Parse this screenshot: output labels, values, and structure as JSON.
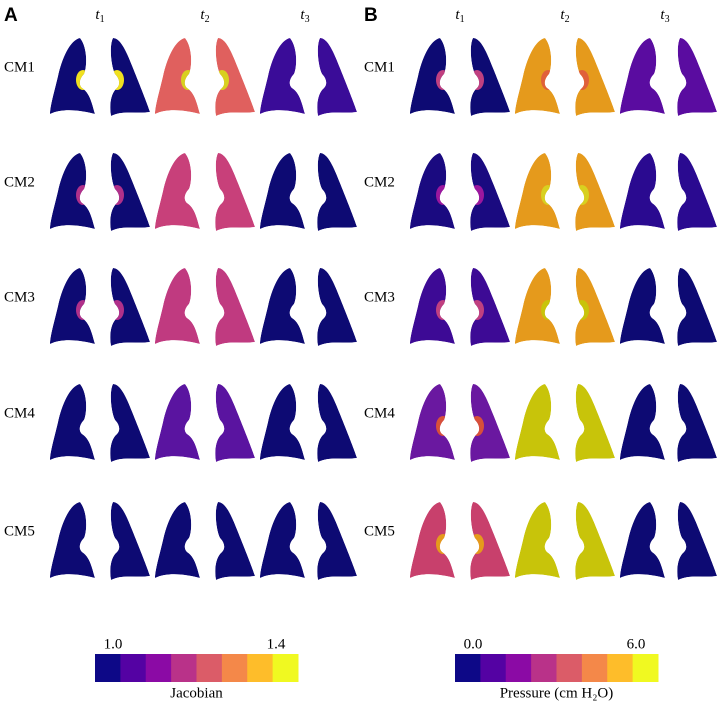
{
  "panels": [
    {
      "letter": "A",
      "columns": [
        {
          "base": "t",
          "sub": "1"
        },
        {
          "base": "t",
          "sub": "2"
        },
        {
          "base": "t",
          "sub": "3"
        }
      ],
      "rows": [
        {
          "label": "CM1",
          "cells": [
            {
              "fill": "#0d0a73",
              "spot": "#f0e020"
            },
            {
              "fill": "#e0605e",
              "spot": "#d8d020"
            },
            {
              "fill": "#3a0c98"
            }
          ]
        },
        {
          "label": "CM2",
          "cells": [
            {
              "fill": "#0d0a73",
              "spot": "#b0308a"
            },
            {
              "fill": "#c8407a"
            },
            {
              "fill": "#0d0a73"
            }
          ]
        },
        {
          "label": "CM3",
          "cells": [
            {
              "fill": "#0d0a73",
              "spot": "#b0308a"
            },
            {
              "fill": "#c03a80"
            },
            {
              "fill": "#0d0a73"
            }
          ]
        },
        {
          "label": "CM4",
          "cells": [
            {
              "fill": "#0d0a73"
            },
            {
              "fill": "#5a14a0"
            },
            {
              "fill": "#0d0a73"
            }
          ]
        },
        {
          "label": "CM5",
          "cells": [
            {
              "fill": "#0d0a73"
            },
            {
              "fill": "#0d0a73"
            },
            {
              "fill": "#0d0a73"
            }
          ]
        }
      ],
      "colorbar": {
        "min": "1.0",
        "max": "1.4",
        "label": "Jacobian",
        "colors": [
          "#0d0887",
          "#5402a3",
          "#8b0aa5",
          "#b93289",
          "#db5c68",
          "#f48849",
          "#febd2a",
          "#f0f921"
        ]
      }
    },
    {
      "letter": "B",
      "columns": [
        {
          "base": "t",
          "sub": "1"
        },
        {
          "base": "t",
          "sub": "2"
        },
        {
          "base": "t",
          "sub": "3"
        }
      ],
      "rows": [
        {
          "label": "CM1",
          "cells": [
            {
              "fill": "#0d0a73",
              "spot": "#c04080"
            },
            {
              "fill": "#e59a1c",
              "spot": "#e0603a"
            },
            {
              "fill": "#5a0ca0"
            }
          ]
        },
        {
          "label": "CM2",
          "cells": [
            {
              "fill": "#1a0a80",
              "spot": "#9c179e"
            },
            {
              "fill": "#e59a1c",
              "spot": "#d8d020"
            },
            {
              "fill": "#2a0a90"
            }
          ]
        },
        {
          "label": "CM3",
          "cells": [
            {
              "fill": "#3d0a95",
              "spot": "#c04080"
            },
            {
              "fill": "#e59a1c",
              "spot": "#c8c40a"
            },
            {
              "fill": "#0d0a73"
            }
          ]
        },
        {
          "label": "CM4",
          "cells": [
            {
              "fill": "#6a18a0",
              "spot": "#d8503a"
            },
            {
              "fill": "#c8c40a"
            },
            {
              "fill": "#0d0a73"
            }
          ]
        },
        {
          "label": "CM5",
          "cells": [
            {
              "fill": "#c8406c",
              "spot": "#e59a1c"
            },
            {
              "fill": "#c8c40a"
            },
            {
              "fill": "#0d0a73"
            }
          ]
        }
      ],
      "colorbar": {
        "min": "0.0",
        "max": "6.0",
        "label": "Pressure (cm H₂O)",
        "colors": [
          "#0d0887",
          "#5402a3",
          "#8b0aa5",
          "#b93289",
          "#db5c68",
          "#f48849",
          "#febd2a",
          "#f0f921"
        ]
      }
    }
  ]
}
